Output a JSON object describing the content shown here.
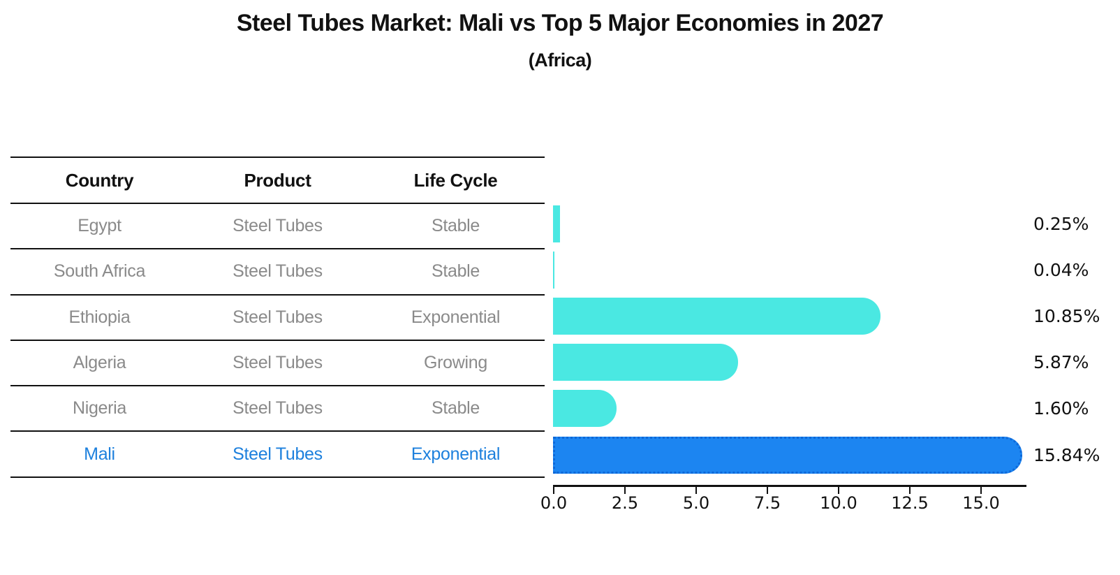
{
  "title": "Steel Tubes Market: Mali vs Top 5 Major Economies in 2027",
  "subtitle": "(Africa)",
  "table": {
    "headers": [
      "Country",
      "Product",
      "Life Cycle"
    ],
    "rows": [
      {
        "country": "Egypt",
        "product": "Steel Tubes",
        "life_cycle": "Stable",
        "highlight": false
      },
      {
        "country": "South Africa",
        "product": "Steel Tubes",
        "life_cycle": "Stable",
        "highlight": false
      },
      {
        "country": "Ethiopia",
        "product": "Steel Tubes",
        "life_cycle": "Exponential",
        "highlight": false
      },
      {
        "country": "Algeria",
        "product": "Steel Tubes",
        "life_cycle": "Growing",
        "highlight": false
      },
      {
        "country": "Nigeria",
        "product": "Steel Tubes",
        "life_cycle": "Stable",
        "highlight": false
      },
      {
        "country": "Mali",
        "product": "Steel Tubes",
        "life_cycle": "Exponential",
        "highlight": true
      }
    ]
  },
  "chart_data": {
    "type": "bar",
    "orientation": "horizontal",
    "title": "Steel Tubes Market: Mali vs Top 5 Major Economies in 2027",
    "subtitle": "(Africa)",
    "categories": [
      "Egypt",
      "South Africa",
      "Ethiopia",
      "Algeria",
      "Nigeria",
      "Mali"
    ],
    "values": [
      0.25,
      0.04,
      10.85,
      5.87,
      1.6,
      15.84
    ],
    "value_labels": [
      "0.25%",
      "0.04%",
      "10.85%",
      "5.87%",
      "1.60%",
      "15.84%"
    ],
    "highlight_index": 5,
    "x_tick_values": [
      0,
      2.5,
      5,
      7.5,
      10,
      12.5,
      15
    ],
    "x_tick_labels": [
      "0.0",
      "2.5",
      "5.0",
      "7.5",
      "10.0",
      "12.5",
      "15.0"
    ],
    "xlim": [
      0,
      16.57
    ],
    "grid": false,
    "legend": "none",
    "bar_color": "#4AE8E2",
    "highlight_bar_color": "#1C85F1",
    "highlight_border_color": "#0E68D8",
    "highlight_text_color": "#1d80dd",
    "table_text_color": "#8a8a8a",
    "axis_color": "#111111"
  }
}
